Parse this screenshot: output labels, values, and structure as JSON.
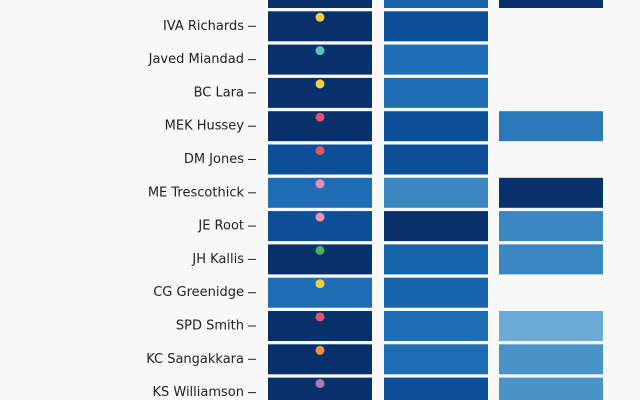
{
  "chart_data": {
    "type": "heatmap",
    "color_scale": [
      "#6aaad5",
      "#4a93c9",
      "#3a87c2",
      "#2b79bb",
      "#1f6db3",
      "#1764ab",
      "#0d4f96",
      "#08306b"
    ],
    "rows": [
      {
        "label": "",
        "cells": [
          7,
          5,
          7
        ],
        "dot": null
      },
      {
        "label": "IVA Richards",
        "cells": [
          7,
          6,
          null
        ],
        "dot": "#f2cc45"
      },
      {
        "label": "Javed Miandad",
        "cells": [
          7,
          4,
          null
        ],
        "dot": "#5ec2b8"
      },
      {
        "label": "BC Lara",
        "cells": [
          7,
          4,
          null
        ],
        "dot": "#f2cc45"
      },
      {
        "label": "MEK Hussey",
        "cells": [
          7,
          6,
          3
        ],
        "dot": "#e05568"
      },
      {
        "label": "DM Jones",
        "cells": [
          6,
          6,
          null
        ],
        "dot": "#e05568"
      },
      {
        "label": "ME Trescothick",
        "cells": [
          4,
          2,
          7
        ],
        "dot": "#f08fb0"
      },
      {
        "label": "JE Root",
        "cells": [
          6,
          7,
          2
        ],
        "dot": "#f08fb0"
      },
      {
        "label": "JH Kallis",
        "cells": [
          7,
          5,
          2
        ],
        "dot": "#4caf63"
      },
      {
        "label": "CG Greenidge",
        "cells": [
          4,
          5,
          null
        ],
        "dot": "#f2cc45"
      },
      {
        "label": "SPD Smith",
        "cells": [
          7,
          4,
          0
        ],
        "dot": "#e05568"
      },
      {
        "label": "KC Sangakkara",
        "cells": [
          7,
          4,
          1
        ],
        "dot": "#f5923e"
      },
      {
        "label": "KS Williamson",
        "cells": [
          7,
          6,
          1
        ],
        "dot": "#a97bb5"
      }
    ]
  }
}
